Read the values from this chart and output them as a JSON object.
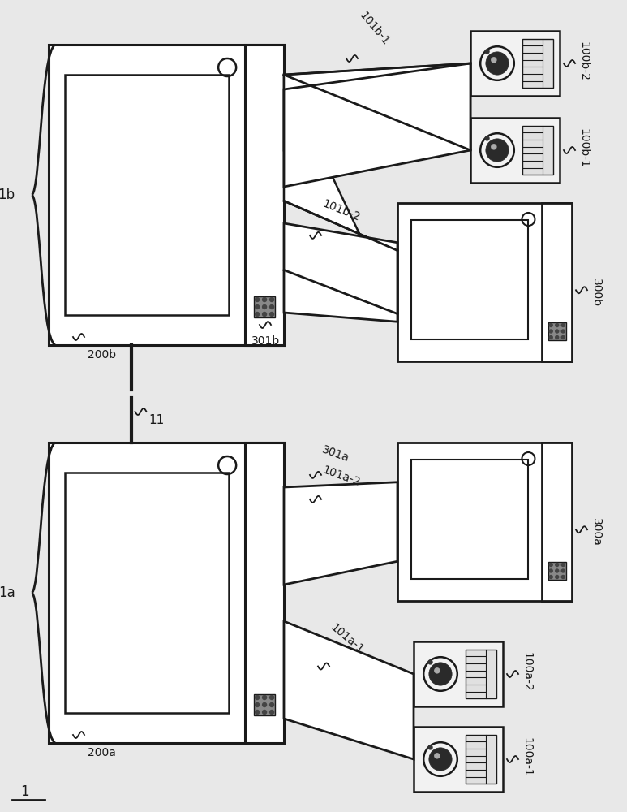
{
  "bg_color": "#e8e8e8",
  "line_color": "#1a1a1a",
  "white": "#ffffff",
  "dot_gray": "#888888",
  "fig_width": 7.73,
  "fig_height": 10.0,
  "label_1a": "1a",
  "label_1b": "1b",
  "label_200a": "200a",
  "label_200b": "200b",
  "label_300a": "300a",
  "label_300b": "300b",
  "label_100a1": "100a-1",
  "label_100a2": "100a-2",
  "label_100b1": "100b-1",
  "label_100b2": "100b-2",
  "label_101a1": "101a-1",
  "label_101a2": "101a-2",
  "label_101b1": "101b-1",
  "label_101b2": "101b-2",
  "label_301a": "301a",
  "label_301b": "301b",
  "label_11": "11",
  "label_1": "1"
}
